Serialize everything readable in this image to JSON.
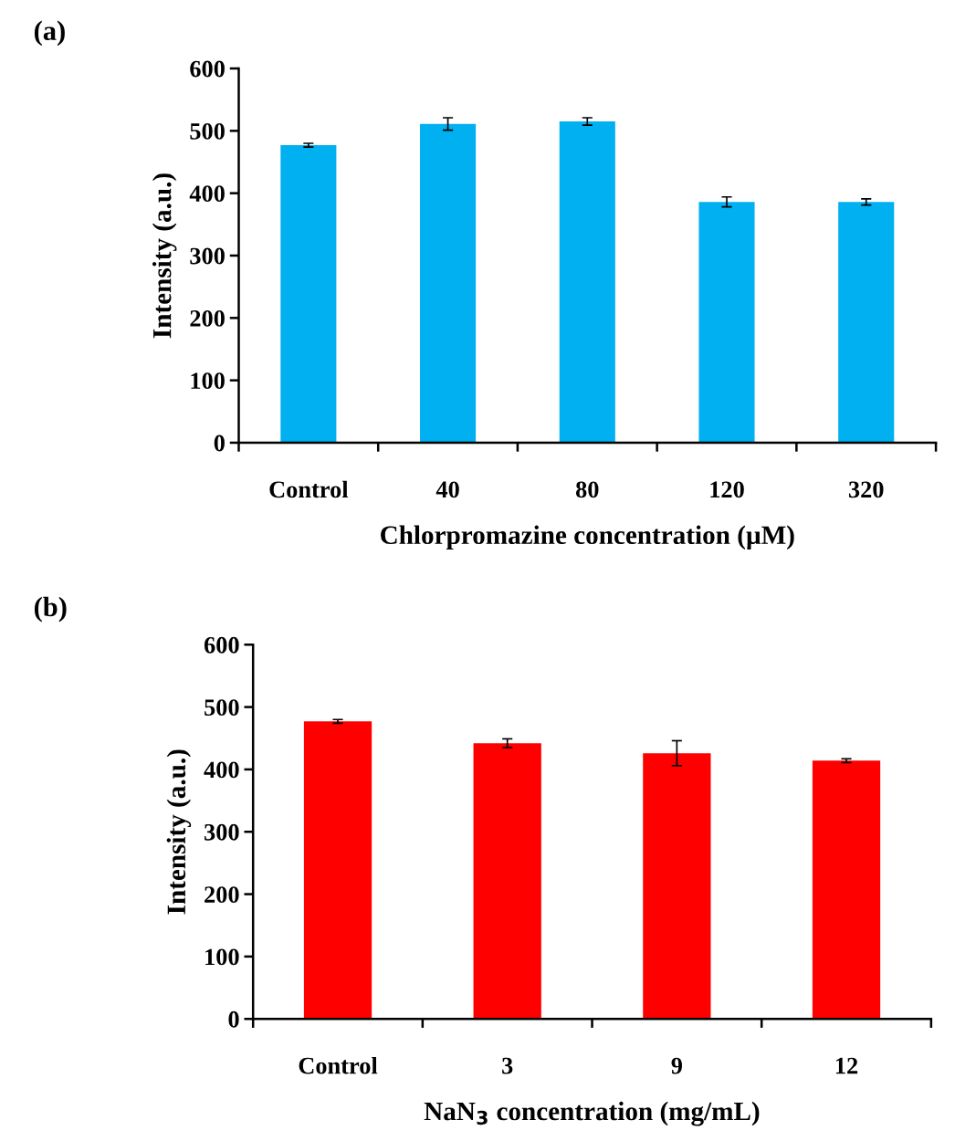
{
  "chart_data": [
    {
      "type": "bar",
      "title": "(a)",
      "xlabel": "Chlorpromazine concentration (µM)",
      "ylabel": "Intensity (a.u.)",
      "categories": [
        "Control",
        "40",
        "80",
        "120",
        "320"
      ],
      "series": [
        {
          "color": "#00b0f0",
          "values": [
            477,
            511,
            515,
            386,
            386
          ],
          "errors": [
            3,
            10,
            6,
            8,
            5
          ]
        }
      ],
      "ylim": [
        0,
        600
      ],
      "yticks": [
        0,
        100,
        200,
        300,
        400,
        500,
        600
      ],
      "grid": false,
      "legend": false
    },
    {
      "type": "bar",
      "title": "(b)",
      "xlabel": "NaN$_{3}$ concentration (mg/mL)",
      "ylabel": "Intensity (a.u.)",
      "categories": [
        "Control",
        "3",
        "9",
        "12"
      ],
      "series": [
        {
          "color": "#ff0000",
          "values": [
            477,
            442,
            426,
            414
          ],
          "errors": [
            3,
            7,
            20,
            3
          ]
        }
      ],
      "ylim": [
        0,
        600
      ],
      "yticks": [
        0,
        100,
        200,
        300,
        400,
        500,
        600
      ],
      "grid": false,
      "legend": false
    }
  ]
}
